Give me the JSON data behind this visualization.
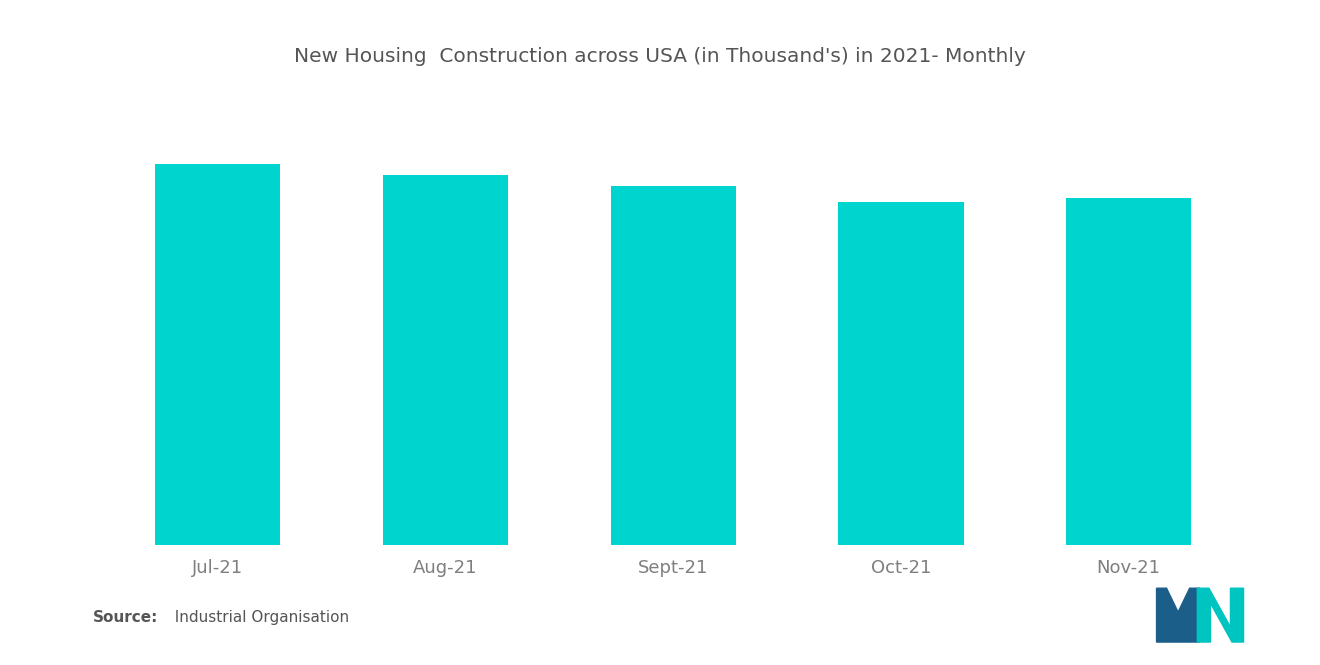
{
  "title": "New Housing  Construction across USA (in Thousand's) in 2021- Monthly",
  "categories": [
    "Jul-21",
    "Aug-21",
    "Sept-21",
    "Oct-21",
    "Nov-21"
  ],
  "values": [
    1.0,
    0.97,
    0.94,
    0.9,
    0.91
  ],
  "bar_color": "#00D4CF",
  "background_color": "#ffffff",
  "source_label": "Source:",
  "source_text": "  Industrial Organisation",
  "title_fontsize": 14.5,
  "tick_fontsize": 13,
  "tick_color": "#7f7f7f",
  "title_color": "#555555",
  "ylim_max": 1.08,
  "bar_width": 0.55,
  "logo_blue": "#1c5e8a",
  "logo_teal": "#00C4C0"
}
